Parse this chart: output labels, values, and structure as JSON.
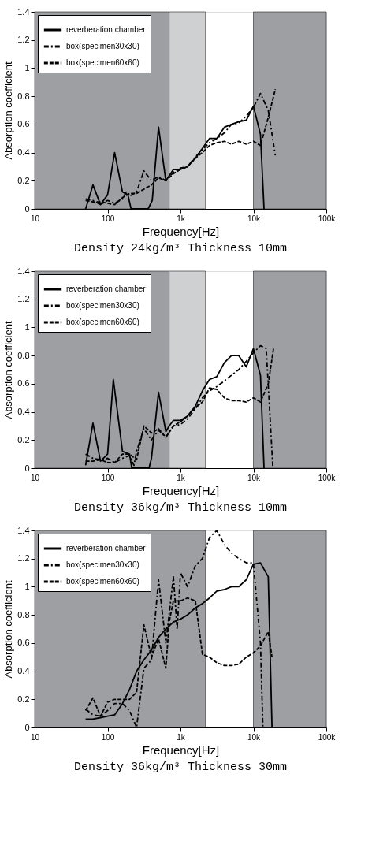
{
  "chart_data": [
    {
      "type": "line",
      "title": "Density 24kg/m³  Thickness 10mm",
      "xlabel": "Frequency[Hz]",
      "ylabel": "Absorption coefficient",
      "log": "x",
      "legend": "top left",
      "grid": false,
      "xlim": [
        10,
        100000
      ],
      "xticks": [
        10,
        100,
        {
          "value": 1000,
          "label": "1k"
        },
        {
          "value": 10000,
          "label": "10k"
        },
        {
          "value": 100000,
          "label": "100k"
        }
      ],
      "ylim": [
        0,
        1.4
      ],
      "yticks": [
        0,
        0.2,
        0.4,
        0.6,
        0.8,
        1,
        1.2,
        1.4
      ],
      "bands": [
        {
          "axis": "x",
          "from": 10,
          "to": 700,
          "color": "#9e9fa2"
        },
        {
          "axis": "x",
          "from": 700,
          "to": 2200,
          "color": "#cfd0d2"
        },
        {
          "axis": "x",
          "from": 10000,
          "to": 100000,
          "color": "#9e9fa2"
        }
      ],
      "series": [
        {
          "name": "reverberation chamber",
          "color": "#000000",
          "line_style": "solid",
          "x": [
            50,
            63,
            80,
            100,
            125,
            160,
            190,
            210,
            360,
            410,
            500,
            630,
            800,
            1000,
            1250,
            1600,
            2000,
            2500,
            3150,
            4000,
            5000,
            6300,
            8000,
            10000,
            12500,
            14000
          ],
          "values": [
            0,
            0.17,
            0.03,
            0.1,
            0.4,
            0.12,
            0.1,
            0,
            0,
            0.06,
            0.58,
            0.2,
            0.28,
            0.28,
            0.3,
            0.36,
            0.43,
            0.5,
            0.5,
            0.58,
            0.6,
            0.62,
            0.63,
            0.73,
            0.53,
            0
          ]
        },
        {
          "name": "box(specimen30x30)",
          "color": "#000000",
          "line_style": "dashdot",
          "x": [
            50,
            63,
            80,
            100,
            125,
            160,
            180,
            200,
            250,
            315,
            400,
            500,
            630,
            800,
            1000,
            1250,
            1600,
            2000,
            2500,
            3150,
            4000,
            5000,
            6300,
            8000,
            10000,
            12500,
            16000,
            20000
          ],
          "values": [
            0.07,
            0.06,
            0.03,
            0.06,
            0.04,
            0.07,
            0.12,
            0.09,
            0.12,
            0.27,
            0.2,
            0.23,
            0.2,
            0.26,
            0.29,
            0.3,
            0.37,
            0.42,
            0.47,
            0.5,
            0.54,
            0.6,
            0.61,
            0.66,
            0.72,
            0.82,
            0.7,
            0.38
          ]
        },
        {
          "name": "box(specimen60x60)",
          "color": "#000000",
          "line_style": "dashed",
          "x": [
            50,
            63,
            80,
            100,
            125,
            160,
            200,
            250,
            315,
            400,
            500,
            630,
            800,
            1000,
            1250,
            1600,
            2000,
            2500,
            3150,
            4000,
            5000,
            6300,
            8000,
            10000,
            12500,
            16000,
            20000
          ],
          "values": [
            0.06,
            0.05,
            0.05,
            0.04,
            0.03,
            0.08,
            0.11,
            0.11,
            0.14,
            0.17,
            0.22,
            0.2,
            0.25,
            0.28,
            0.3,
            0.36,
            0.4,
            0.45,
            0.47,
            0.48,
            0.46,
            0.48,
            0.46,
            0.48,
            0.45,
            0.65,
            0.85
          ]
        }
      ]
    },
    {
      "type": "line",
      "title": "Density 36kg/m³  Thickness 10mm",
      "xlabel": "Frequency[Hz]",
      "ylabel": "Absorption coefficient",
      "log": "x",
      "legend": "top left",
      "grid": false,
      "xlim": [
        10,
        100000
      ],
      "xticks": [
        10,
        100,
        {
          "value": 1000,
          "label": "1k"
        },
        {
          "value": 10000,
          "label": "10k"
        },
        {
          "value": 100000,
          "label": "100k"
        }
      ],
      "ylim": [
        0,
        1.4
      ],
      "yticks": [
        0,
        0.2,
        0.4,
        0.6,
        0.8,
        1,
        1.2,
        1.4
      ],
      "bands": [
        {
          "axis": "x",
          "from": 10,
          "to": 700,
          "color": "#9e9fa2"
        },
        {
          "axis": "x",
          "from": 700,
          "to": 2200,
          "color": "#cfd0d2"
        },
        {
          "axis": "x",
          "from": 10000,
          "to": 100000,
          "color": "#9e9fa2"
        }
      ],
      "series": [
        {
          "name": "reverberation chamber",
          "color": "#000000",
          "line_style": "solid",
          "x": [
            50,
            63,
            80,
            100,
            120,
            160,
            200,
            215,
            370,
            400,
            500,
            630,
            700,
            800,
            1000,
            1250,
            1600,
            2000,
            2500,
            3150,
            4000,
            5000,
            6300,
            8000,
            10000,
            12500,
            14000
          ],
          "values": [
            0.02,
            0.32,
            0.05,
            0.1,
            0.63,
            0.12,
            0.1,
            0,
            0,
            0.07,
            0.54,
            0.26,
            0.3,
            0.34,
            0.34,
            0.37,
            0.44,
            0.55,
            0.63,
            0.65,
            0.75,
            0.8,
            0.8,
            0.72,
            0.85,
            0.66,
            0
          ]
        },
        {
          "name": "box(specimen30x30)",
          "color": "#000000",
          "line_style": "dashdot",
          "x": [
            50,
            63,
            80,
            100,
            125,
            160,
            200,
            230,
            250,
            315,
            400,
            500,
            630,
            800,
            1000,
            1250,
            1600,
            2000,
            2500,
            3150,
            4000,
            5000,
            6300,
            8000,
            10000,
            12500,
            15000,
            18500
          ],
          "values": [
            0.1,
            0.07,
            0.06,
            0.07,
            0.04,
            0.07,
            0.09,
            0.02,
            0.12,
            0.28,
            0.2,
            0.27,
            0.22,
            0.3,
            0.31,
            0.35,
            0.42,
            0.5,
            0.55,
            0.58,
            0.62,
            0.66,
            0.7,
            0.76,
            0.82,
            0.87,
            0.85,
            0
          ]
        },
        {
          "name": "box(specimen60x60)",
          "color": "#000000",
          "line_style": "dashed",
          "x": [
            50,
            63,
            80,
            100,
            125,
            160,
            200,
            250,
            315,
            400,
            500,
            630,
            800,
            1000,
            1250,
            1600,
            2000,
            2500,
            3150,
            4000,
            5000,
            6300,
            8000,
            10000,
            12500,
            16000,
            19000
          ],
          "values": [
            0.05,
            0.05,
            0.06,
            0.04,
            0.04,
            0.1,
            0.1,
            0.06,
            0.3,
            0.25,
            0.28,
            0.22,
            0.3,
            0.33,
            0.37,
            0.43,
            0.47,
            0.57,
            0.56,
            0.5,
            0.48,
            0.48,
            0.47,
            0.5,
            0.47,
            0.6,
            0.86
          ]
        }
      ]
    },
    {
      "type": "line",
      "title": "Density 36kg/m³  Thickness 30mm",
      "xlabel": "Frequency[Hz]",
      "ylabel": "Absorption coefficient",
      "log": "x",
      "legend": "top left",
      "grid": false,
      "xlim": [
        10,
        100000
      ],
      "xticks": [
        10,
        100,
        {
          "value": 1000,
          "label": "1k"
        },
        {
          "value": 10000,
          "label": "10k"
        },
        {
          "value": 100000,
          "label": "100k"
        }
      ],
      "ylim": [
        0,
        1.4
      ],
      "yticks": [
        0,
        0.2,
        0.4,
        0.6,
        0.8,
        1,
        1.2,
        1.4
      ],
      "bands": [
        {
          "axis": "x",
          "from": 10,
          "to": 2200,
          "color": "#9e9fa2"
        },
        {
          "axis": "x",
          "from": 10000,
          "to": 100000,
          "color": "#9e9fa2"
        }
      ],
      "series": [
        {
          "name": "reverberation chamber",
          "color": "#000000",
          "line_style": "solid",
          "x": [
            50,
            63,
            80,
            100,
            125,
            160,
            200,
            250,
            315,
            400,
            500,
            630,
            800,
            1000,
            1250,
            1600,
            2000,
            2500,
            3150,
            4000,
            5000,
            6300,
            8000,
            10000,
            12500,
            16000,
            18000
          ],
          "values": [
            0.06,
            0.06,
            0.07,
            0.08,
            0.09,
            0.17,
            0.27,
            0.4,
            0.48,
            0.55,
            0.64,
            0.7,
            0.75,
            0.77,
            0.8,
            0.85,
            0.88,
            0.92,
            0.97,
            0.98,
            1.0,
            1.0,
            1.05,
            1.16,
            1.17,
            1.07,
            0
          ]
        },
        {
          "name": "box(specimen30x30)",
          "color": "#000000",
          "line_style": "dashdot",
          "x": [
            50,
            63,
            80,
            100,
            125,
            160,
            200,
            250,
            315,
            400,
            500,
            630,
            800,
            900,
            1000,
            1250,
            1600,
            2000,
            2500,
            3150,
            4000,
            5000,
            6300,
            8000,
            10000,
            12500,
            13500
          ],
          "values": [
            0.13,
            0.09,
            0.08,
            0.12,
            0.17,
            0.17,
            0.12,
            0,
            0.42,
            0.48,
            1.05,
            0.6,
            1.07,
            0.7,
            1.1,
            1.0,
            1.15,
            1.2,
            1.35,
            1.4,
            1.3,
            1.24,
            1.2,
            1.17,
            1.17,
            0.6,
            0
          ]
        },
        {
          "name": "box(specimen60x60)",
          "color": "#000000",
          "line_style": "dashed",
          "x": [
            50,
            63,
            80,
            100,
            125,
            160,
            200,
            250,
            315,
            400,
            500,
            630,
            700,
            800,
            1000,
            1250,
            1600,
            2000,
            2500,
            3150,
            4000,
            5000,
            6300,
            8000,
            10000,
            12500,
            16000,
            18000
          ],
          "values": [
            0.12,
            0.21,
            0.08,
            0.18,
            0.2,
            0.2,
            0.2,
            0.25,
            0.73,
            0.5,
            0.63,
            0.42,
            0.75,
            0.9,
            0.9,
            0.92,
            0.9,
            0.52,
            0.5,
            0.46,
            0.44,
            0.44,
            0.45,
            0.5,
            0.53,
            0.58,
            0.68,
            0.5
          ]
        }
      ]
    }
  ]
}
